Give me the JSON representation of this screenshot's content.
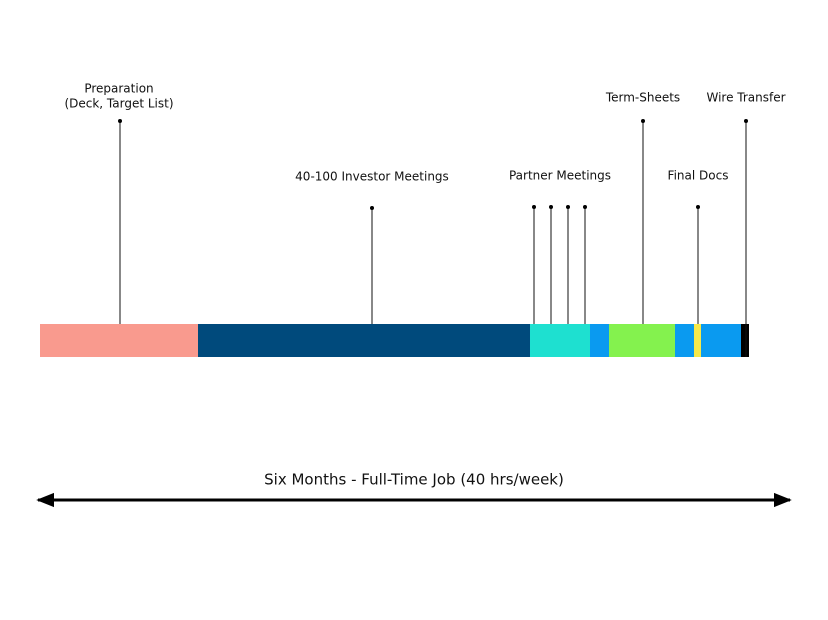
{
  "labels": [
    {
      "lines": [
        "Preparation",
        "(Deck, Target List)"
      ]
    },
    {
      "lines": [
        "40-100 Investor Meetings"
      ]
    },
    {
      "lines": [
        "Partner Meetings"
      ]
    },
    {
      "lines": [
        "Term-Sheets"
      ]
    },
    {
      "lines": [
        "Final Docs"
      ]
    },
    {
      "lines": [
        "Wire Transfer"
      ]
    }
  ],
  "timeline": {
    "label": "Six Months - Full-Time Job (40 hrs/week)"
  }
}
